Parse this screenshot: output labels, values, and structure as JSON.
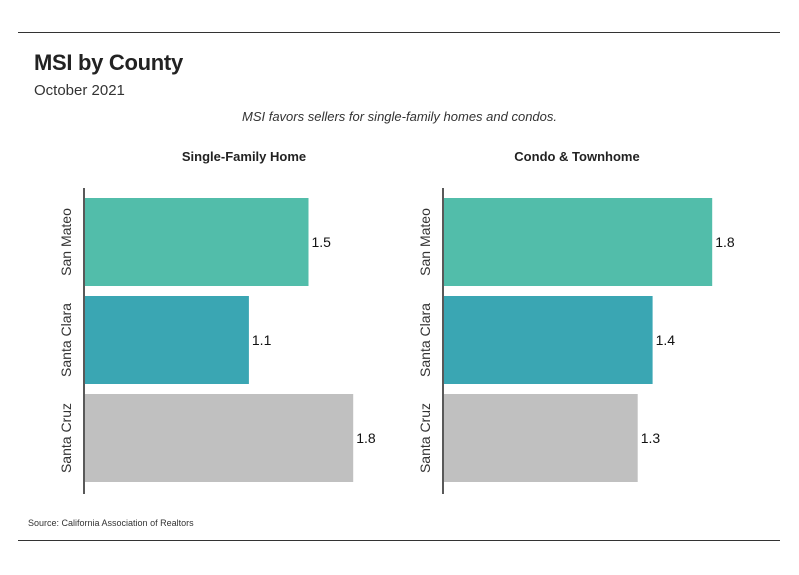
{
  "header": {
    "title": "MSI by County",
    "subtitle": "October 2021",
    "caption": "MSI favors sellers for single-family homes and condos."
  },
  "footer": {
    "source": "Source:  California Association of Realtors"
  },
  "colors": {
    "San Mateo": "#52bdaa",
    "Santa Clara": "#3aa6b3",
    "Santa Cruz": "#c0c0c0",
    "axis": "#222222"
  },
  "chart_data": [
    {
      "type": "bar",
      "orientation": "horizontal",
      "title": "Single-Family Home",
      "categories": [
        "San Mateo",
        "Santa Clara",
        "Santa Cruz"
      ],
      "values": [
        1.5,
        1.1,
        1.8
      ],
      "value_labels": [
        "1.5",
        "1.1",
        "1.8"
      ],
      "xlim": [
        0,
        2.0
      ]
    },
    {
      "type": "bar",
      "orientation": "horizontal",
      "title": "Condo & Townhome",
      "categories": [
        "San Mateo",
        "Santa Clara",
        "Santa Cruz"
      ],
      "values": [
        1.8,
        1.4,
        1.3
      ],
      "value_labels": [
        "1.8",
        "1.4",
        "1.3"
      ],
      "xlim": [
        0,
        2.0
      ]
    }
  ]
}
